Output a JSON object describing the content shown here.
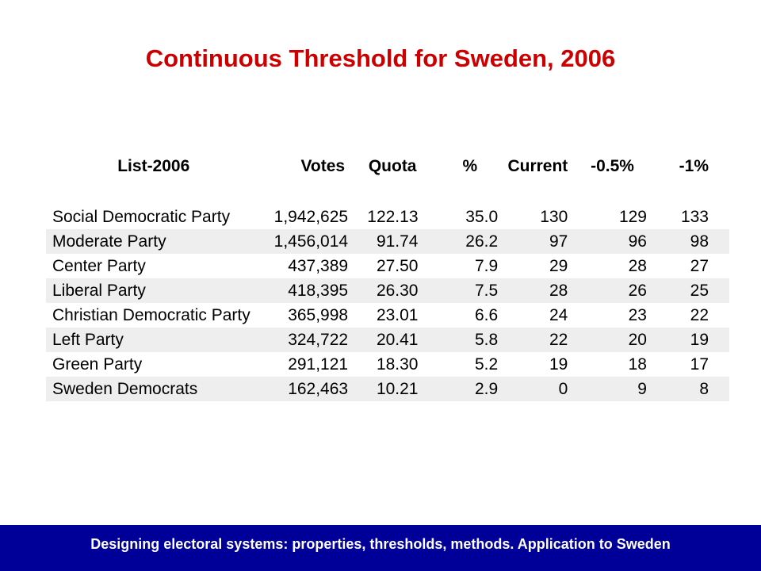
{
  "title": "Continuous Threshold for Sweden, 2006",
  "table": {
    "headers": {
      "list": "List-2006",
      "votes": "Votes",
      "quota": "Quota",
      "pct": "%",
      "current": "Current",
      "minus_half": "-0.5%",
      "minus_one": "-1%"
    },
    "rows": [
      {
        "party": "Social Democratic Party",
        "votes": "1,942,625",
        "quota": "122.13",
        "pct": "35.0",
        "current": "130",
        "minus_half": "129",
        "minus_one": "133"
      },
      {
        "party": "Moderate Party",
        "votes": "1,456,014",
        "quota": "91.74",
        "pct": "26.2",
        "current": "97",
        "minus_half": "96",
        "minus_one": "98"
      },
      {
        "party": "Center Party",
        "votes": "437,389",
        "quota": "27.50",
        "pct": "7.9",
        "current": "29",
        "minus_half": "28",
        "minus_one": "27"
      },
      {
        "party": "Liberal Party",
        "votes": "418,395",
        "quota": "26.30",
        "pct": "7.5",
        "current": "28",
        "minus_half": "26",
        "minus_one": "25"
      },
      {
        "party": "Christian Democratic Party",
        "votes": "365,998",
        "quota": "23.01",
        "pct": "6.6",
        "current": "24",
        "minus_half": "23",
        "minus_one": "22"
      },
      {
        "party": "Left Party",
        "votes": "324,722",
        "quota": "20.41",
        "pct": "5.8",
        "current": "22",
        "minus_half": "20",
        "minus_one": "19"
      },
      {
        "party": "Green Party",
        "votes": "291,121",
        "quota": "18.30",
        "pct": "5.2",
        "current": "19",
        "minus_half": "18",
        "minus_one": "17"
      },
      {
        "party": "Sweden Democrats",
        "votes": "162,463",
        "quota": "10.21",
        "pct": "2.9",
        "current": "0",
        "minus_half": "9",
        "minus_one": "8"
      }
    ]
  },
  "footer": {
    "text": "Designing electoral systems: properties, thresholds, methods. Application to Sweden",
    "color": "#000099"
  },
  "colors": {
    "title": "#cc0000",
    "row_shade": "#eeeeee"
  }
}
